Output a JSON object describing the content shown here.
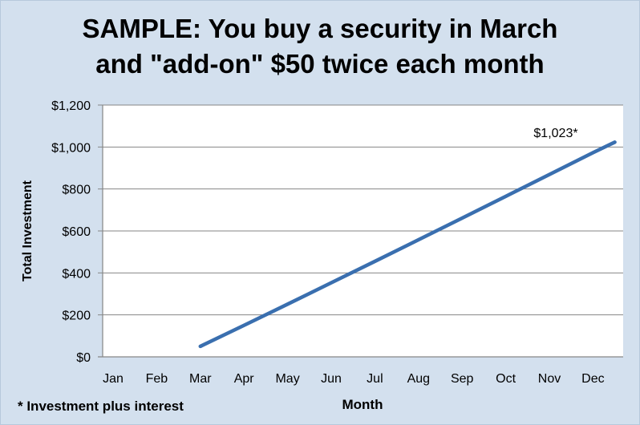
{
  "chart_data": {
    "type": "line",
    "title_line1": "SAMPLE:  You buy a security in March",
    "title_line2": "and \"add-on\" $50 twice each month",
    "xlabel": "Month",
    "ylabel": "Total Investment",
    "x_categories": [
      "Jan",
      "Feb",
      "Mar",
      "Apr",
      "May",
      "Jun",
      "Jul",
      "Aug",
      "Sep",
      "Oct",
      "Nov",
      "Dec"
    ],
    "y_ticks": [
      "$0",
      "$200",
      "$400",
      "$600",
      "$800",
      "$1,000",
      "$1,200"
    ],
    "ylim": [
      0,
      1200
    ],
    "y_tick_values": [
      0,
      200,
      400,
      600,
      800,
      1000,
      1200
    ],
    "grid": "horizontal",
    "series": [
      {
        "color": "#3a6faf",
        "points": [
          {
            "month": 3,
            "value": 50
          },
          {
            "month": 4,
            "value": 150
          },
          {
            "month": 5,
            "value": 251
          },
          {
            "month": 6,
            "value": 353
          },
          {
            "month": 7,
            "value": 455
          },
          {
            "month": 8,
            "value": 558
          },
          {
            "month": 9,
            "value": 661
          },
          {
            "month": 10,
            "value": 765
          },
          {
            "month": 11,
            "value": 869
          },
          {
            "month": 12,
            "value": 973
          },
          {
            "month": 12.5,
            "value": 1023
          }
        ]
      }
    ],
    "annotation": "$1,023*",
    "footnote": "* Investment plus interest"
  }
}
